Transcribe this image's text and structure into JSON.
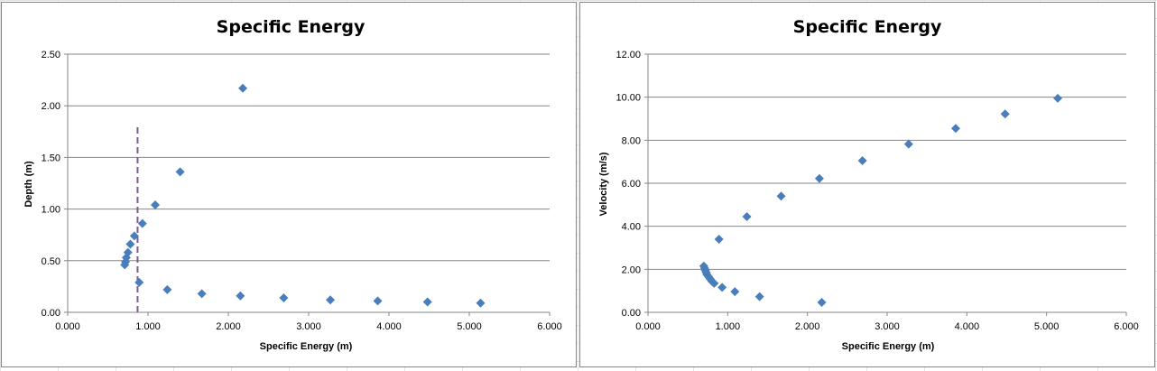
{
  "chart_data": [
    {
      "type": "scatter",
      "title": "Specific Energy",
      "xlabel": "Specific Energy (m)",
      "ylabel": "Depth (m)",
      "xlim": [
        0,
        6
      ],
      "ylim": [
        0,
        2.5
      ],
      "x_ticks": [
        "0.000",
        "1.000",
        "2.000",
        "3.000",
        "4.000",
        "5.000",
        "6.000"
      ],
      "y_ticks": [
        "0.00",
        "0.50",
        "1.00",
        "1.50",
        "2.00",
        "2.50"
      ],
      "grid": "horizontal",
      "marker": "diamond",
      "color": "#4a7ebb",
      "series": [
        {
          "points": [
            [
              2.18,
              2.17
            ],
            [
              1.4,
              1.36
            ],
            [
              1.09,
              1.04
            ],
            [
              0.93,
              0.86
            ],
            [
              0.83,
              0.74
            ],
            [
              0.78,
              0.66
            ],
            [
              0.75,
              0.58
            ],
            [
              0.73,
              0.53
            ],
            [
              0.72,
              0.49
            ],
            [
              0.71,
              0.46
            ],
            [
              0.89,
              0.29
            ],
            [
              1.24,
              0.22
            ],
            [
              1.67,
              0.18
            ],
            [
              2.15,
              0.16
            ],
            [
              2.69,
              0.14
            ],
            [
              3.27,
              0.12
            ],
            [
              3.86,
              0.11
            ],
            [
              4.48,
              0.1
            ],
            [
              5.14,
              0.09
            ]
          ]
        }
      ],
      "reference_line": {
        "style": "dashed",
        "color": "#7d5a8f",
        "x": 0.87,
        "y_range": [
          0,
          1.82
        ]
      }
    },
    {
      "type": "scatter",
      "title": "Specific Energy",
      "xlabel": "Specific Energy (m)",
      "ylabel": "Velocity (m/s)",
      "xlim": [
        0,
        6
      ],
      "ylim": [
        0,
        12
      ],
      "x_ticks": [
        "0.000",
        "1.000",
        "2.000",
        "3.000",
        "4.000",
        "5.000",
        "6.000"
      ],
      "y_ticks": [
        "0.00",
        "2.00",
        "4.00",
        "6.00",
        "8.00",
        "10.00",
        "12.00"
      ],
      "grid": "horizontal",
      "marker": "diamond",
      "color": "#4a7ebb",
      "series": [
        {
          "points": [
            [
              2.18,
              0.46
            ],
            [
              1.4,
              0.73
            ],
            [
              1.09,
              0.96
            ],
            [
              0.93,
              1.16
            ],
            [
              0.83,
              1.35
            ],
            [
              0.8,
              1.45
            ],
            [
              0.78,
              1.55
            ],
            [
              0.76,
              1.65
            ],
            [
              0.74,
              1.75
            ],
            [
              0.73,
              1.85
            ],
            [
              0.72,
              1.95
            ],
            [
              0.71,
              2.05
            ],
            [
              0.7,
              2.15
            ],
            [
              0.89,
              3.4
            ],
            [
              1.24,
              4.45
            ],
            [
              1.67,
              5.4
            ],
            [
              2.15,
              6.22
            ],
            [
              2.69,
              7.05
            ],
            [
              3.27,
              7.82
            ],
            [
              3.86,
              8.55
            ],
            [
              4.48,
              9.22
            ],
            [
              5.14,
              9.95
            ]
          ]
        }
      ]
    }
  ]
}
